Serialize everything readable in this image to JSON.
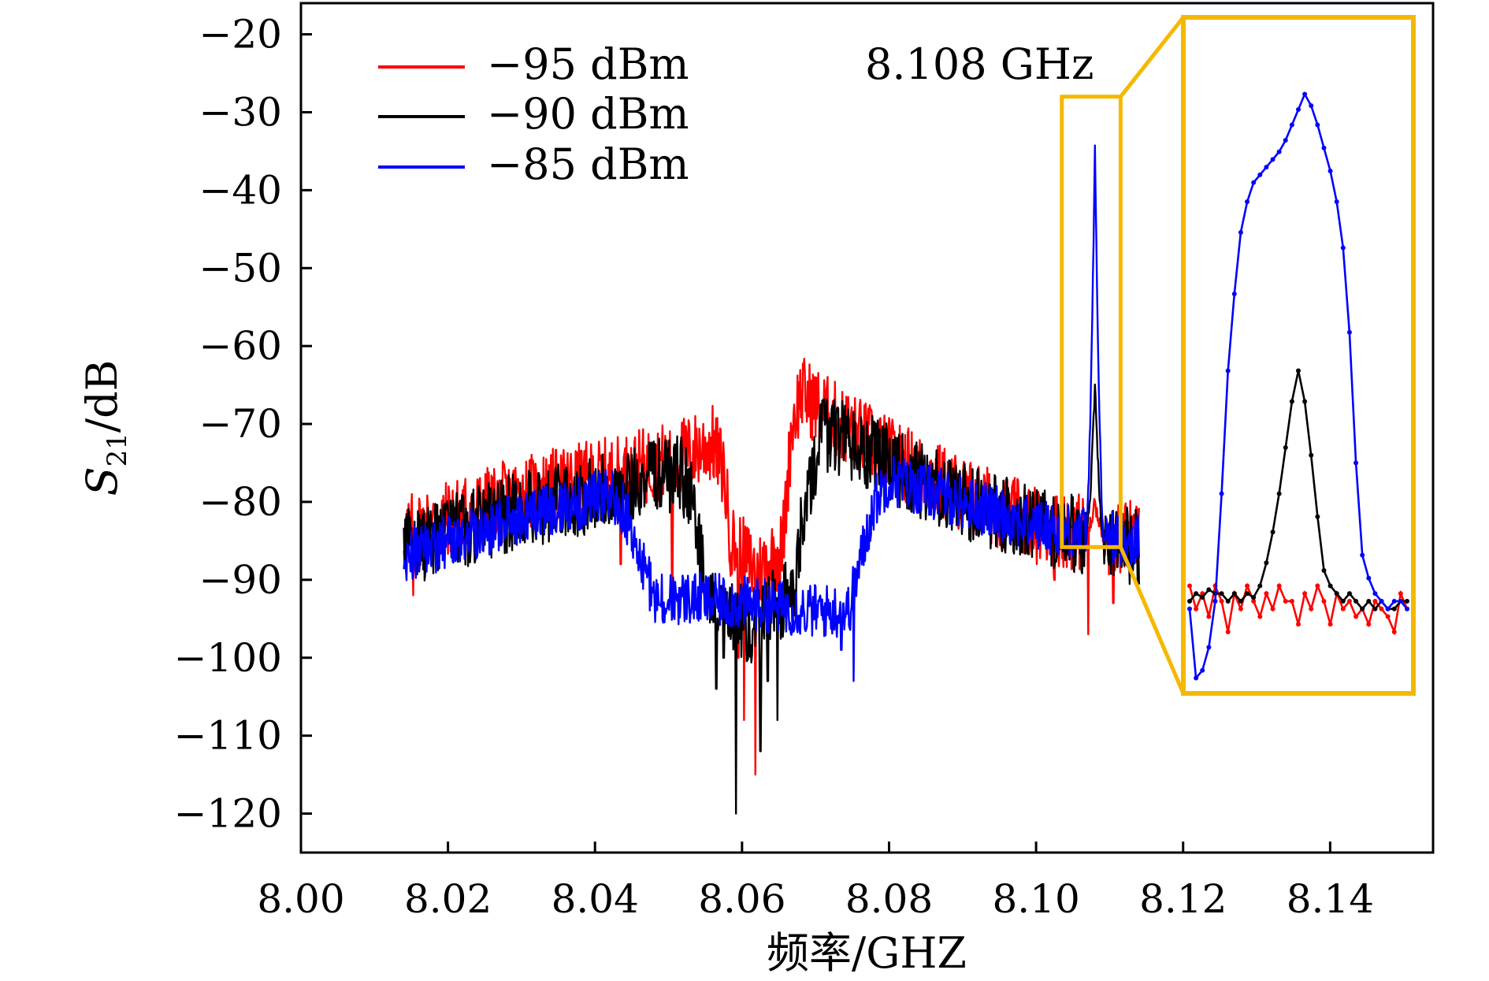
{
  "chart_data": {
    "type": "line",
    "xlabel": "频率/GHZ",
    "ylabel": "S21/dB",
    "ylabel_main": "S",
    "ylabel_sub": "21",
    "ylabel_rest": "/dB",
    "xlim": [
      8.0,
      8.154
    ],
    "ylim": [
      -125,
      -16
    ],
    "xticks": [
      {
        "value": 8.0,
        "label": "8.00"
      },
      {
        "value": 8.02,
        "label": "8.02"
      },
      {
        "value": 8.04,
        "label": "8.04"
      },
      {
        "value": 8.06,
        "label": "8.06"
      },
      {
        "value": 8.08,
        "label": "8.08"
      },
      {
        "value": 8.1,
        "label": "8.10"
      },
      {
        "value": 8.12,
        "label": "8.12"
      },
      {
        "value": 8.14,
        "label": "8.14"
      }
    ],
    "yticks": [
      {
        "value": -20,
        "label": "−20"
      },
      {
        "value": -30,
        "label": "−30"
      },
      {
        "value": -40,
        "label": "−40"
      },
      {
        "value": -50,
        "label": "−50"
      },
      {
        "value": -60,
        "label": "−60"
      },
      {
        "value": -70,
        "label": "−70"
      },
      {
        "value": -80,
        "label": "−80"
      },
      {
        "value": -90,
        "label": "−90"
      },
      {
        "value": -100,
        "label": "−100"
      },
      {
        "value": -110,
        "label": "−110"
      },
      {
        "value": -120,
        "label": "−120"
      }
    ],
    "grid": false,
    "legend_position": "top-left",
    "annotation": "8.108 GHz",
    "x_range": [
      8.014,
      8.114
    ],
    "series": [
      {
        "name": "−95 dBm",
        "color": "#ff0000",
        "noise": 5,
        "points": [
          [
            8.014,
            -84
          ],
          [
            8.03,
            -79
          ],
          [
            8.045,
            -76
          ],
          [
            8.052,
            -74
          ],
          [
            8.056,
            -72.5
          ],
          [
            8.0575,
            -76
          ],
          [
            8.0585,
            -85
          ],
          [
            8.062,
            -89
          ],
          [
            8.0655,
            -86
          ],
          [
            8.0668,
            -70
          ],
          [
            8.068,
            -66
          ],
          [
            8.072,
            -69
          ],
          [
            8.08,
            -74
          ],
          [
            8.09,
            -79
          ],
          [
            8.1,
            -83
          ],
          [
            8.114,
            -85
          ]
        ],
        "spikes": [
          [
            8.0603,
            -108
          ],
          [
            8.0618,
            -115
          ],
          [
            8.0595,
            -100
          ],
          [
            8.0505,
            -91
          ],
          [
            8.0435,
            -88
          ],
          [
            8.1025,
            -90
          ],
          [
            8.1105,
            -93
          ],
          [
            8.1071,
            -97
          ],
          [
            8.0153,
            -92
          ]
        ]
      },
      {
        "name": "−90 dBm",
        "color": "#000000",
        "noise": 5,
        "points": [
          [
            8.014,
            -86
          ],
          [
            8.03,
            -81
          ],
          [
            8.045,
            -78
          ],
          [
            8.0515,
            -76
          ],
          [
            8.053,
            -79
          ],
          [
            8.0545,
            -88
          ],
          [
            8.056,
            -94
          ],
          [
            8.062,
            -96
          ],
          [
            8.067,
            -91
          ],
          [
            8.0685,
            -81
          ],
          [
            8.0705,
            -72
          ],
          [
            8.072,
            -71
          ],
          [
            8.08,
            -75
          ],
          [
            8.09,
            -80
          ],
          [
            8.1,
            -83
          ],
          [
            8.114,
            -86
          ]
        ],
        "spikes": [
          [
            8.0592,
            -120
          ],
          [
            8.0625,
            -112
          ],
          [
            8.0565,
            -104
          ],
          [
            8.0648,
            -108
          ],
          [
            8.0575,
            -100
          ],
          [
            8.0635,
            -103
          ]
        ]
      },
      {
        "name": "−85 dBm",
        "color": "#0000ff",
        "noise": 3.5,
        "points": [
          [
            8.014,
            -87
          ],
          [
            8.03,
            -82
          ],
          [
            8.042,
            -79
          ],
          [
            8.044,
            -81
          ],
          [
            8.046,
            -87
          ],
          [
            8.048,
            -92
          ],
          [
            8.06,
            -93
          ],
          [
            8.07,
            -94
          ],
          [
            8.0745,
            -94
          ],
          [
            8.076,
            -88
          ],
          [
            8.078,
            -80
          ],
          [
            8.08,
            -77
          ],
          [
            8.09,
            -80
          ],
          [
            8.1,
            -83
          ],
          [
            8.114,
            -85
          ]
        ],
        "spikes": [
          [
            8.0752,
            -103
          ],
          [
            8.0688,
            -96
          ],
          [
            8.0735,
            -99
          ]
        ]
      }
    ],
    "peak_region": {
      "center": 8.108,
      "range": [
        8.1068,
        8.1092
      ],
      "peaks": [
        {
          "name": "−85 dBm",
          "value": -35
        },
        {
          "name": "−90 dBm",
          "value": -65
        },
        {
          "name": "−95 dBm",
          "value": -80
        }
      ]
    },
    "inset": {
      "box_x": [
        8.1035,
        8.1115
      ],
      "box_y": [
        -85.8,
        -28
      ],
      "frame_color": "#f5b800",
      "series": [
        {
          "name": "−85 dBm",
          "color": "#0000ff",
          "values": [
            -93,
            -102,
            -101,
            -98,
            -92,
            -78,
            -62,
            -52,
            -44,
            -40,
            -37.5,
            -36.5,
            -35.5,
            -34.5,
            -33.5,
            -32,
            -30,
            -28,
            -26,
            -27.5,
            -30,
            -33,
            -36,
            -40,
            -46,
            -57,
            -74,
            -86,
            -89,
            -91,
            -92,
            -93,
            -92,
            -92,
            -93
          ]
        },
        {
          "name": "−90 dBm",
          "color": "#000000",
          "values": [
            -92,
            -91,
            -91.5,
            -90.5,
            -91,
            -91,
            -92,
            -91,
            -92,
            -91,
            -91.5,
            -90,
            -87,
            -83,
            -78,
            -72,
            -66,
            -62,
            -66,
            -73,
            -81,
            -88,
            -90,
            -91,
            -92,
            -91,
            -92,
            -93,
            -92,
            -93,
            -92,
            -93,
            -93,
            -92,
            -92
          ]
        },
        {
          "name": "−95 dBm",
          "color": "#ff0000",
          "values": [
            -90,
            -93,
            -91,
            -94,
            -90,
            -92,
            -96,
            -91,
            -93,
            -90,
            -92,
            -94,
            -91,
            -93,
            -90,
            -92,
            -92,
            -95,
            -91,
            -93,
            -90,
            -92,
            -95,
            -91,
            -93,
            -92,
            -94,
            -93,
            -95,
            -92,
            -93,
            -94,
            -96,
            -91,
            -93
          ]
        }
      ]
    }
  }
}
